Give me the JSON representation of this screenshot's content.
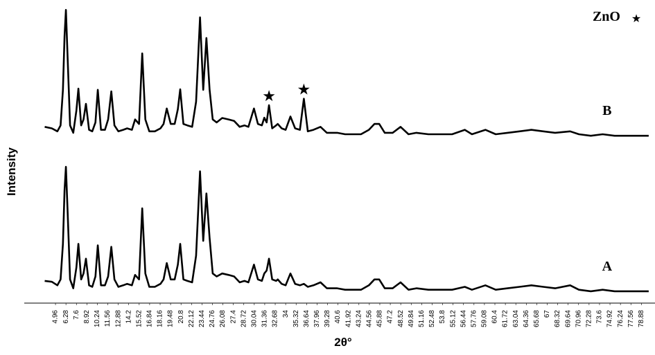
{
  "chart_data": {
    "type": "line",
    "xlabel": "2θ°",
    "ylabel": "Intensity",
    "x": [
      3.6,
      4.5,
      5.2,
      5.6,
      5.9,
      6.1,
      6.28,
      6.5,
      6.8,
      7.2,
      7.6,
      7.85,
      8.2,
      8.5,
      8.8,
      9.2,
      9.6,
      10.0,
      10.3,
      10.7,
      11.2,
      11.6,
      12.0,
      12.4,
      12.9,
      13.5,
      14.0,
      14.6,
      15.0,
      15.5,
      15.9,
      16.3,
      16.8,
      17.5,
      18.2,
      18.6,
      19.0,
      19.5,
      20.0,
      20.4,
      20.7,
      21.1,
      21.6,
      22.2,
      22.7,
      23.2,
      23.6,
      24.0,
      24.4,
      24.8,
      25.3,
      26.0,
      26.8,
      27.5,
      28.2,
      28.8,
      29.3,
      30.0,
      30.5,
      31.0,
      31.3,
      31.6,
      31.9,
      32.3,
      32.8,
      33.0,
      33.5,
      34.0,
      34.6,
      35.2,
      35.8,
      36.3,
      36.8,
      37.5,
      38.4,
      39.2,
      40.5,
      41.5,
      42.5,
      43.5,
      44.5,
      45.2,
      45.8,
      46.5,
      47.5,
      48.5,
      49.5,
      50.5,
      52,
      53.5,
      55,
      56.6,
      57.5,
      59.2,
      60.5,
      62,
      63.5,
      65,
      66.5,
      68,
      69.9,
      71,
      72.5,
      74,
      75.5,
      77,
      78.5,
      79.8
    ],
    "series": [
      {
        "name": "A",
        "color": "#000000",
        "values": [
          7.5,
          7.2,
          6,
          8,
          20,
          38,
          46,
          30,
          8,
          5,
          12,
          20,
          8,
          10,
          15,
          6,
          5.5,
          9,
          19.5,
          6,
          6,
          9,
          19,
          8,
          5.5,
          6,
          6.5,
          6,
          9.5,
          8,
          32,
          10,
          5.5,
          5.5,
          6.5,
          8,
          13.5,
          8,
          8,
          13,
          20,
          8,
          7.5,
          7,
          16,
          44.5,
          21,
          37,
          22,
          10,
          9,
          10,
          9.5,
          9,
          7,
          7.5,
          7,
          13,
          8,
          7.5,
          10,
          11,
          15,
          8,
          7.5,
          8,
          6.5,
          6,
          10,
          6.5,
          6,
          6.5,
          5.5,
          6,
          7,
          5,
          5,
          4.5,
          4.5,
          4.5,
          6,
          8,
          8,
          5,
          5,
          7,
          4.5,
          5,
          4.5,
          4.5,
          4.5,
          5.5,
          4.5,
          6,
          4.5,
          5,
          5.5,
          6,
          5.5,
          5,
          6,
          4.5,
          4,
          4.5,
          4,
          4,
          4,
          4
        ]
      },
      {
        "name": "B",
        "color": "#000000",
        "values": [
          59.5,
          59,
          58,
          60,
          72,
          90,
          99,
          82,
          60,
          57.5,
          65,
          72.4,
          60,
          62,
          67.3,
          58.5,
          58,
          61,
          72,
          58.5,
          58.5,
          62,
          71.5,
          60,
          58,
          58.5,
          59,
          58.5,
          62,
          60.5,
          84.3,
          62,
          58,
          58,
          59,
          60.5,
          65.7,
          60.5,
          60.5,
          65.5,
          72.2,
          60.5,
          60,
          59.5,
          68,
          96.5,
          72,
          89.5,
          72,
          62,
          61,
          62.5,
          62,
          61.5,
          59.5,
          60,
          59.5,
          65.7,
          60.5,
          60,
          62.6,
          61,
          66.8,
          59,
          60,
          60.5,
          59,
          58.5,
          63,
          59,
          58.5,
          69,
          58,
          58.5,
          59.5,
          57.5,
          57.5,
          57,
          57,
          57,
          58.5,
          60.5,
          60.5,
          57.5,
          57.5,
          59.5,
          57,
          57.5,
          57,
          57,
          57,
          58.5,
          57,
          58.5,
          57,
          57.5,
          58,
          58.5,
          58,
          57.5,
          58,
          57,
          56.5,
          57,
          56.5,
          56.5,
          56.5,
          56.5
        ]
      }
    ],
    "markers": {
      "name": "ZnO",
      "symbol": "★",
      "series": 1,
      "x": [
        31.9,
        36.3
      ]
    },
    "legend": "top-right",
    "xlim": [
      1.02,
      80.6
    ],
    "ylim": [
      0,
      100
    ],
    "xticks": [
      4.96,
      6.28,
      7.6,
      8.92,
      10.24,
      11.56,
      12.88,
      14.2,
      15.52,
      16.84,
      18.16,
      19.48,
      20.8,
      22.12,
      23.44,
      24.76,
      26.08,
      27.4,
      28.72,
      30.04,
      31.36,
      32.68,
      34,
      35.32,
      36.64,
      37.96,
      39.28,
      40.6,
      41.92,
      43.24,
      44.56,
      45.88,
      47.2,
      48.52,
      49.84,
      51.16,
      52.48,
      53.8,
      55.12,
      56.44,
      57.76,
      59.08,
      60.4,
      61.72,
      63.04,
      64.36,
      65.68,
      67,
      68.32,
      69.64,
      70.96,
      72.28,
      73.6,
      74.92,
      76.24,
      77.56,
      78.88
    ]
  }
}
